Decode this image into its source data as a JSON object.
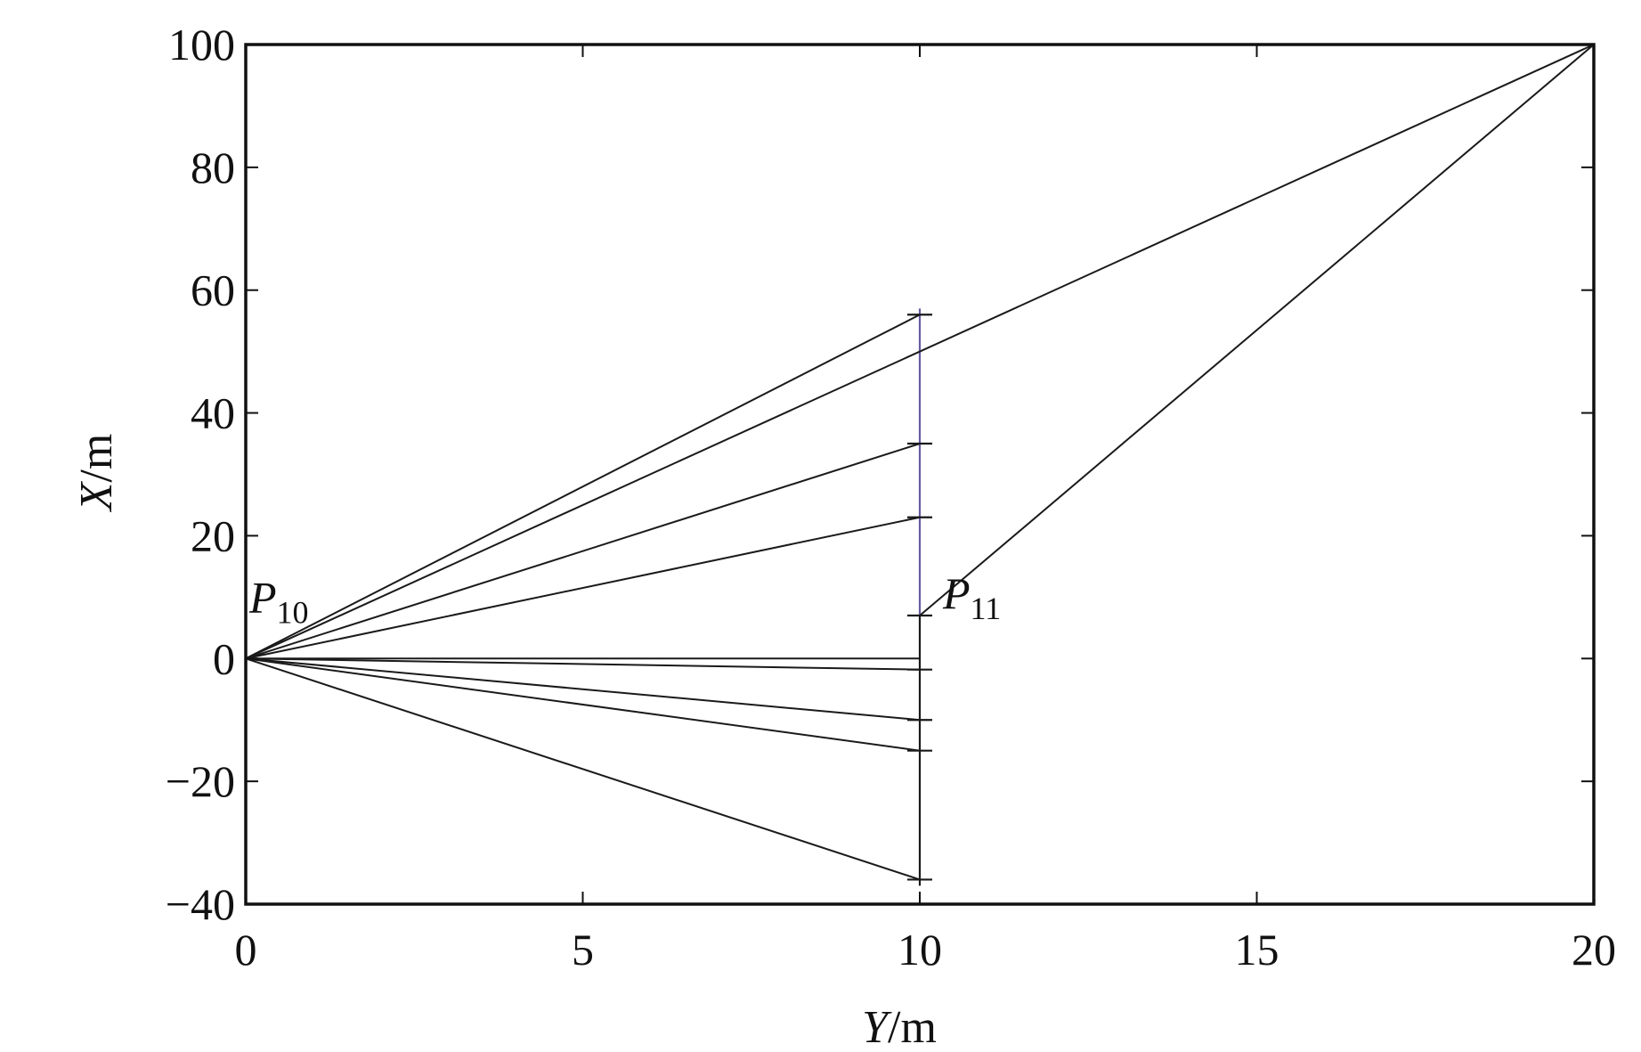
{
  "chart_data": {
    "type": "line",
    "title": "",
    "xlabel": {
      "var": "Y",
      "unit": "/m"
    },
    "ylabel": {
      "var": "X",
      "unit": "/m"
    },
    "xlim": [
      0,
      20
    ],
    "ylim": [
      -40,
      100
    ],
    "xticks": [
      0,
      5,
      10,
      15,
      20
    ],
    "yticks": [
      -40,
      -20,
      0,
      20,
      40,
      60,
      80,
      100
    ],
    "tick_labels": {
      "x": [
        "0",
        "5",
        "10",
        "15",
        "20"
      ],
      "y": [
        "−40",
        "−20",
        "0",
        "20",
        "40",
        "60",
        "80",
        "100"
      ]
    },
    "grid": false,
    "legend": "none",
    "colors": {
      "line": "#1a1a1a",
      "axes": "#111111",
      "segment": "#6a5aa0"
    },
    "origin": {
      "x": 0,
      "y": 0
    },
    "rays_from_origin": [
      {
        "x": 10,
        "y": 56
      },
      {
        "x": 10,
        "y": 35
      },
      {
        "x": 10,
        "y": 23
      },
      {
        "x": 10,
        "y": 0
      },
      {
        "x": 10,
        "y": -1.8
      },
      {
        "x": 10,
        "y": -10
      },
      {
        "x": 10,
        "y": -15
      },
      {
        "x": 10,
        "y": -36
      }
    ],
    "long_paths": [
      {
        "points": [
          {
            "x": 0,
            "y": 0
          },
          {
            "x": 20,
            "y": 100
          }
        ]
      },
      {
        "points": [
          {
            "x": 10,
            "y": 7
          },
          {
            "x": 20,
            "y": 100
          }
        ]
      }
    ],
    "vertical_segment": {
      "x": 10,
      "y_from": -37,
      "y_to": 57
    },
    "segment_tick_marks": [
      56,
      35,
      23,
      7,
      -1.8,
      -10,
      -15,
      -36
    ],
    "annotations": [
      {
        "base": "P",
        "sub": "10",
        "x": 0,
        "y": 0
      },
      {
        "base": "P",
        "sub": "11",
        "x": 10,
        "y": 7
      }
    ]
  }
}
